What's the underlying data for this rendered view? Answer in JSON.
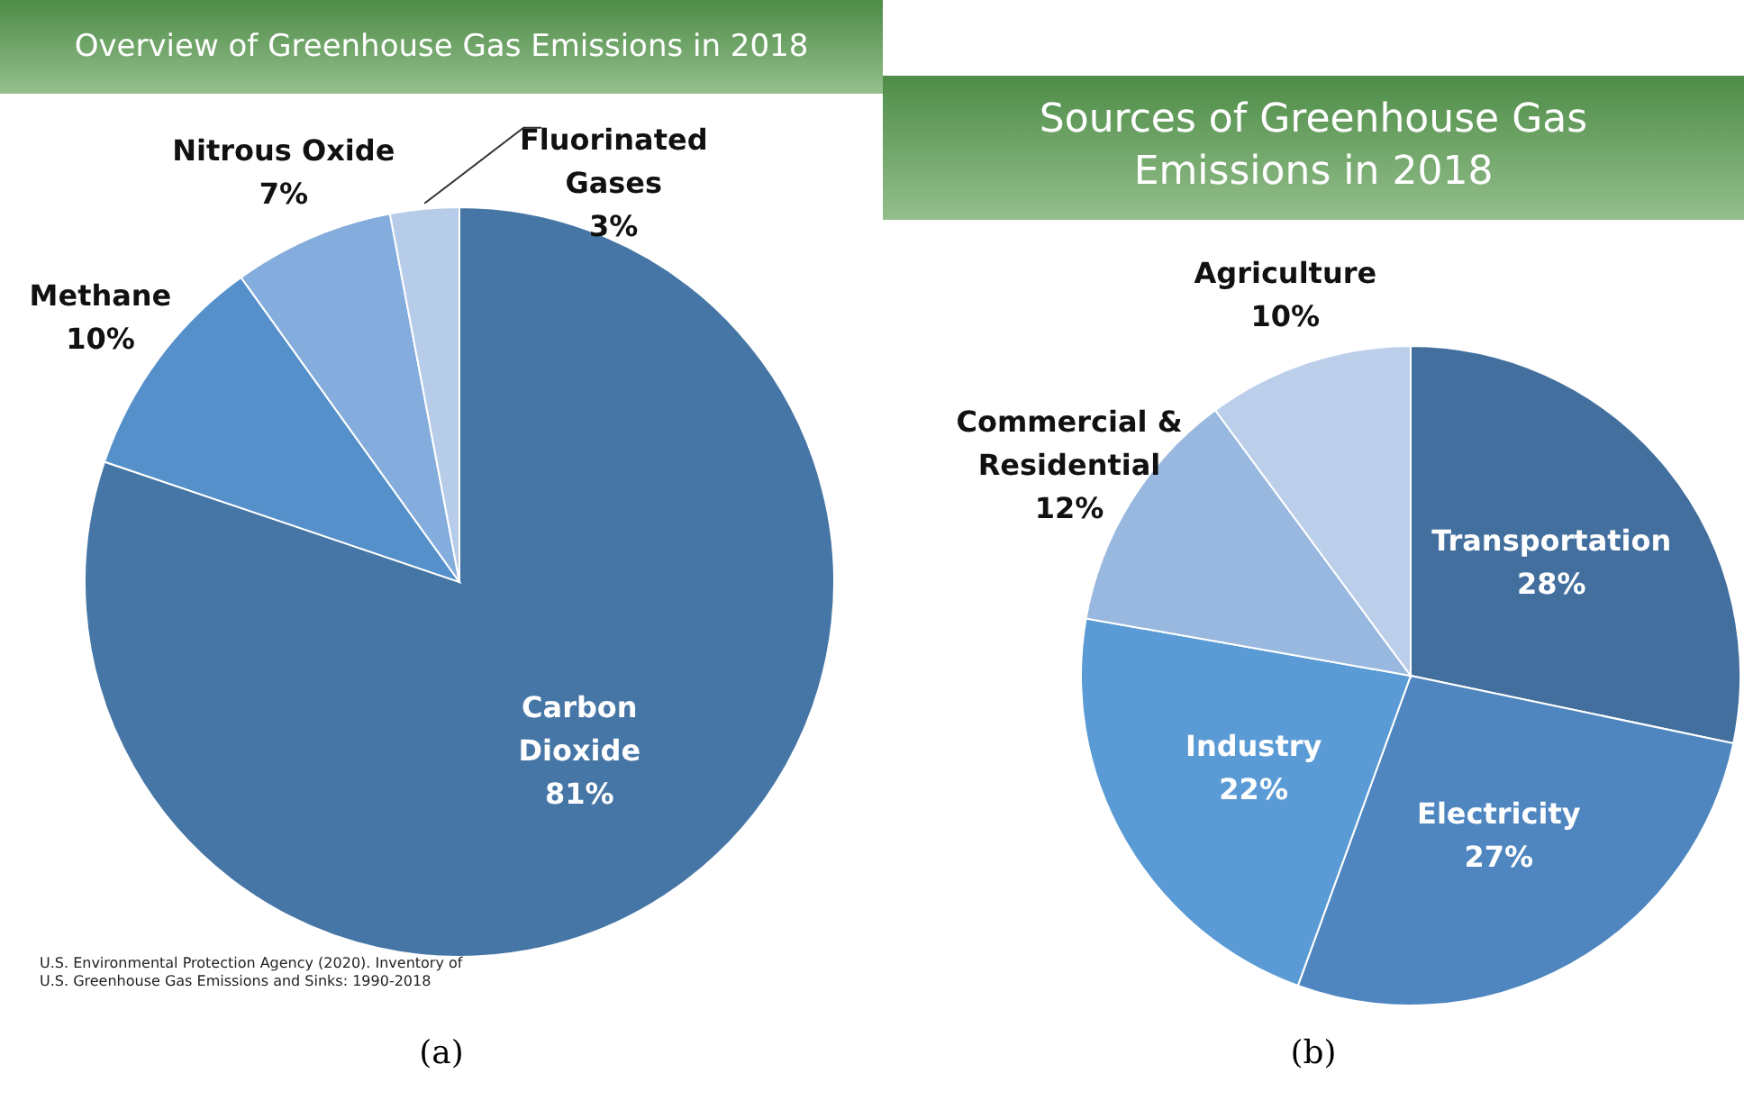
{
  "chart_data": [
    {
      "type": "pie",
      "title": "Overview of Greenhouse Gas Emissions in 2018",
      "subtitle": "(a)",
      "categories": [
        "Carbon Dioxide",
        "Methane",
        "Nitrous Oxide",
        "Fluorinated Gases"
      ],
      "values": [
        81,
        10,
        7,
        3
      ],
      "colors": [
        "#4676a6",
        "#5590cb",
        "#84acdc",
        "#b7cce8"
      ],
      "value_labels": [
        "81%",
        "10%",
        "7%",
        "3%"
      ],
      "legend": false,
      "annotations": [
        "U.S. Environmental Protection Agency (2020). Inventory of U.S. Greenhouse Gas Emissions and Sinks: 1990-2018"
      ]
    },
    {
      "type": "pie",
      "title": "Sources of Greenhouse Gas Emissions in 2018",
      "subtitle": "(b)",
      "categories": [
        "Transportation",
        "Electricity",
        "Industry",
        "Commercial & Residential",
        "Agriculture"
      ],
      "values": [
        28,
        27,
        22,
        12,
        10
      ],
      "colors": [
        "#426f9e",
        "#4f86c0",
        "#5b9bd5",
        "#98b8e0",
        "#bccfea"
      ],
      "value_labels": [
        "28%",
        "27%",
        "22%",
        "12%",
        "10%"
      ],
      "legend": false
    }
  ]
}
